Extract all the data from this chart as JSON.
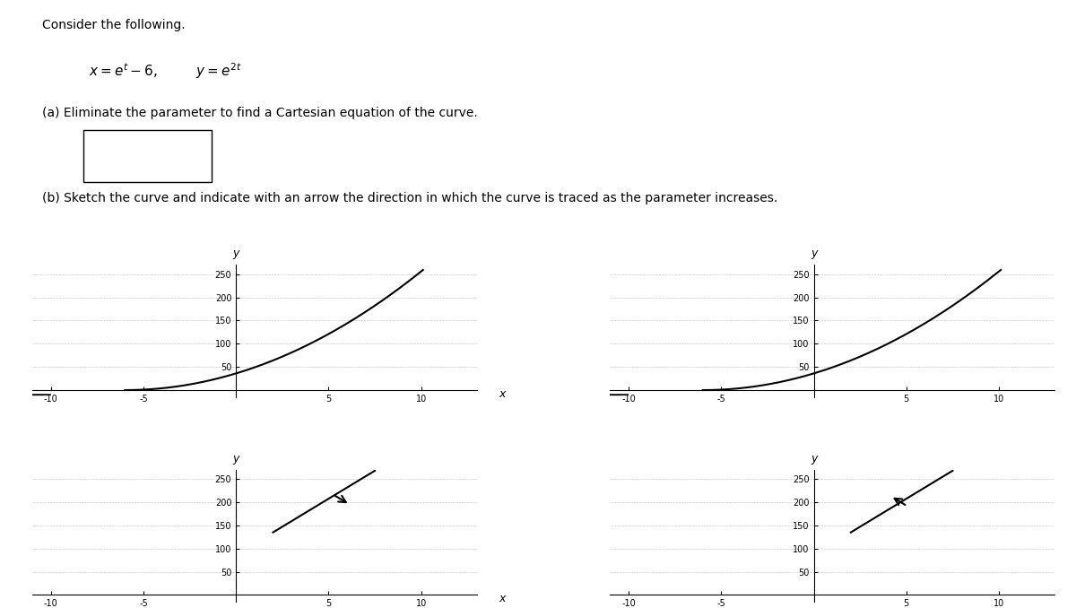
{
  "background_color": "#ffffff",
  "curve_color": "#000000",
  "axis_color": "#000000",
  "xlim": [
    -11,
    13
  ],
  "ylim": [
    -15,
    270
  ],
  "yticks": [
    50,
    100,
    150,
    200,
    250
  ],
  "xticks": [
    -10,
    -5,
    5,
    10
  ],
  "font_size_label": 9,
  "font_size_tick": 7,
  "font_size_text": 10,
  "font_size_eq": 11
}
